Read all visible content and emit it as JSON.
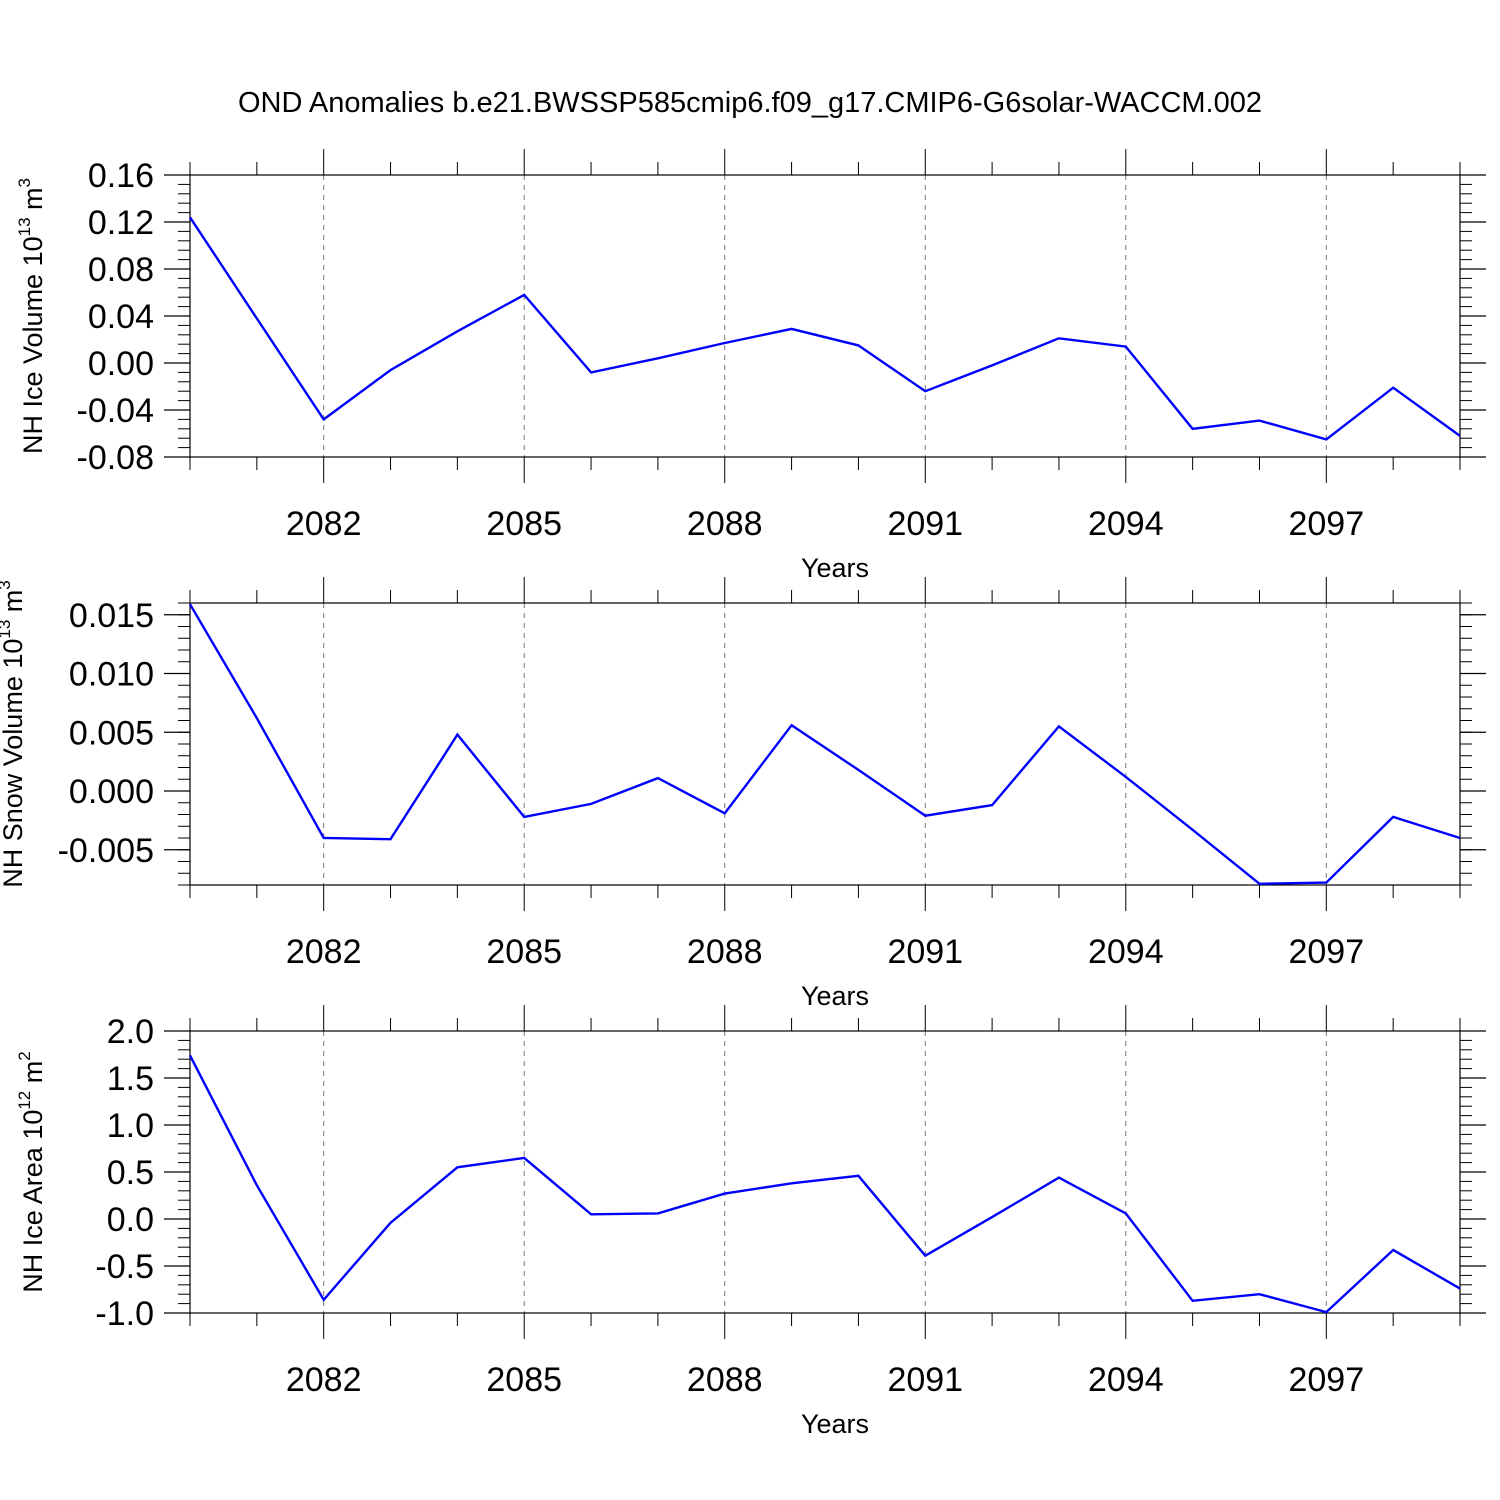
{
  "title": "OND Anomalies b.e21.BWSSP585cmip6.f09_g17.CMIP6-G6solar-WACCM.002",
  "chart_data": [
    {
      "type": "line",
      "title": "OND Anomalies b.e21.BWSSP585cmip6.f09_g17.CMIP6-G6solar-WACCM.002",
      "xlabel": "Years",
      "ylabel": {
        "base": "NH Ice Volume 10",
        "exp": "13",
        "unit": " m",
        "unit_exp": "3"
      },
      "xlim": [
        2080,
        2099
      ],
      "ylim": [
        -0.08,
        0.16
      ],
      "x_ticks": [
        2082,
        2085,
        2088,
        2091,
        2094,
        2097
      ],
      "x_tick_labels": [
        "2082",
        "2085",
        "2088",
        "2091",
        "2094",
        "2097"
      ],
      "y_ticks": [
        -0.08,
        -0.04,
        0.0,
        0.04,
        0.08,
        0.12,
        0.16
      ],
      "y_tick_labels": [
        "-0.08",
        "-0.04",
        "0.00",
        "0.04",
        "0.08",
        "0.12",
        "0.16"
      ],
      "y_minor_step": 0.008,
      "x": [
        2080,
        2081,
        2082,
        2083,
        2084,
        2085,
        2086,
        2087,
        2088,
        2089,
        2090,
        2091,
        2092,
        2093,
        2094,
        2095,
        2096,
        2097,
        2098,
        2099
      ],
      "series": [
        {
          "name": "NH Ice Volume",
          "color": "#0000ff",
          "values": [
            0.124,
            0.038,
            -0.048,
            -0.006,
            0.027,
            0.058,
            -0.008,
            0.004,
            0.017,
            0.029,
            0.015,
            -0.024,
            -0.002,
            0.021,
            0.014,
            -0.056,
            -0.049,
            -0.065,
            -0.021,
            -0.062
          ]
        }
      ]
    },
    {
      "type": "line",
      "xlabel": "Years",
      "ylabel": {
        "base": "NH Snow Volume 10",
        "exp": "13",
        "unit": " m",
        "unit_exp": "3"
      },
      "xlim": [
        2080,
        2099
      ],
      "ylim": [
        -0.008,
        0.016
      ],
      "x_ticks": [
        2082,
        2085,
        2088,
        2091,
        2094,
        2097
      ],
      "x_tick_labels": [
        "2082",
        "2085",
        "2088",
        "2091",
        "2094",
        "2097"
      ],
      "y_ticks": [
        -0.005,
        0.0,
        0.005,
        0.01,
        0.015
      ],
      "y_tick_labels": [
        "-0.005",
        "0.000",
        "0.005",
        "0.010",
        "0.015"
      ],
      "y_minor_step": 0.001,
      "x": [
        2080,
        2081,
        2082,
        2083,
        2084,
        2085,
        2086,
        2087,
        2088,
        2089,
        2090,
        2091,
        2092,
        2093,
        2094,
        2095,
        2096,
        2097,
        2098,
        2099
      ],
      "series": [
        {
          "name": "NH Snow Volume",
          "color": "#0000ff",
          "values": [
            0.0159,
            0.0062,
            -0.004,
            -0.0041,
            0.0048,
            -0.0022,
            -0.0011,
            0.0011,
            -0.0019,
            0.0056,
            0.0018,
            -0.0021,
            -0.0012,
            0.0055,
            0.0012,
            -0.0033,
            -0.0079,
            -0.0078,
            -0.0022,
            -0.004
          ]
        }
      ]
    },
    {
      "type": "line",
      "xlabel": "Years",
      "ylabel": {
        "base": "NH Ice Area 10",
        "exp": "12",
        "unit": " m",
        "unit_exp": "2"
      },
      "xlim": [
        2080,
        2099
      ],
      "ylim": [
        -1.0,
        2.0
      ],
      "x_ticks": [
        2082,
        2085,
        2088,
        2091,
        2094,
        2097
      ],
      "x_tick_labels": [
        "2082",
        "2085",
        "2088",
        "2091",
        "2094",
        "2097"
      ],
      "y_ticks": [
        -1.0,
        -0.5,
        0.0,
        0.5,
        1.0,
        1.5,
        2.0
      ],
      "y_tick_labels": [
        "-1.0",
        "-0.5",
        "0.0",
        "0.5",
        "1.0",
        "1.5",
        "2.0"
      ],
      "y_minor_step": 0.1,
      "x": [
        2080,
        2081,
        2082,
        2083,
        2084,
        2085,
        2086,
        2087,
        2088,
        2089,
        2090,
        2091,
        2092,
        2093,
        2094,
        2095,
        2096,
        2097,
        2098,
        2099
      ],
      "series": [
        {
          "name": "NH Ice Area",
          "color": "#0000ff",
          "values": [
            1.74,
            0.36,
            -0.86,
            -0.04,
            0.55,
            0.65,
            0.05,
            0.06,
            0.27,
            0.38,
            0.46,
            -0.39,
            0.02,
            0.44,
            0.06,
            -0.87,
            -0.8,
            -0.99,
            -0.33,
            -0.74
          ]
        }
      ]
    }
  ]
}
